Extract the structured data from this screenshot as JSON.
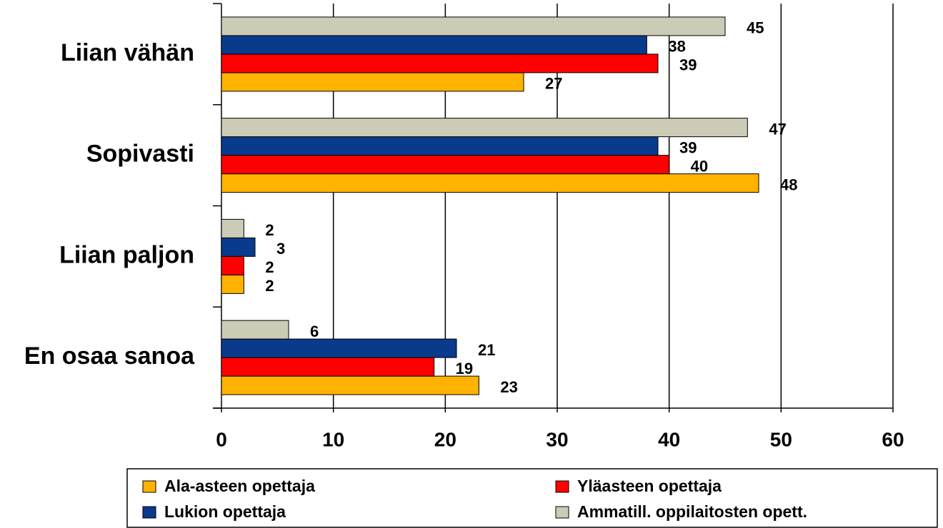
{
  "chart_data": {
    "type": "barh",
    "categories": [
      "Liian vähän",
      "Sopivasti",
      "Liian paljon",
      "En osaa sanoa"
    ],
    "series": [
      {
        "name": "Ala-asteen opettaja",
        "color": "#ffb300",
        "values": [
          27,
          48,
          2,
          23
        ]
      },
      {
        "name": "Yläasteen opettaja",
        "color": "#ff0000",
        "values": [
          39,
          40,
          2,
          19
        ]
      },
      {
        "name": "Lukion opettaja",
        "color": "#0a3a8c",
        "values": [
          38,
          39,
          3,
          21
        ]
      },
      {
        "name": "Ammatill. oppilaitosten opett.",
        "color": "#cccbb6",
        "values": [
          45,
          47,
          2,
          6
        ]
      }
    ],
    "xlim": [
      0,
      60
    ],
    "xticks": [
      0,
      10,
      20,
      30,
      40,
      50,
      60
    ],
    "grid": true
  }
}
